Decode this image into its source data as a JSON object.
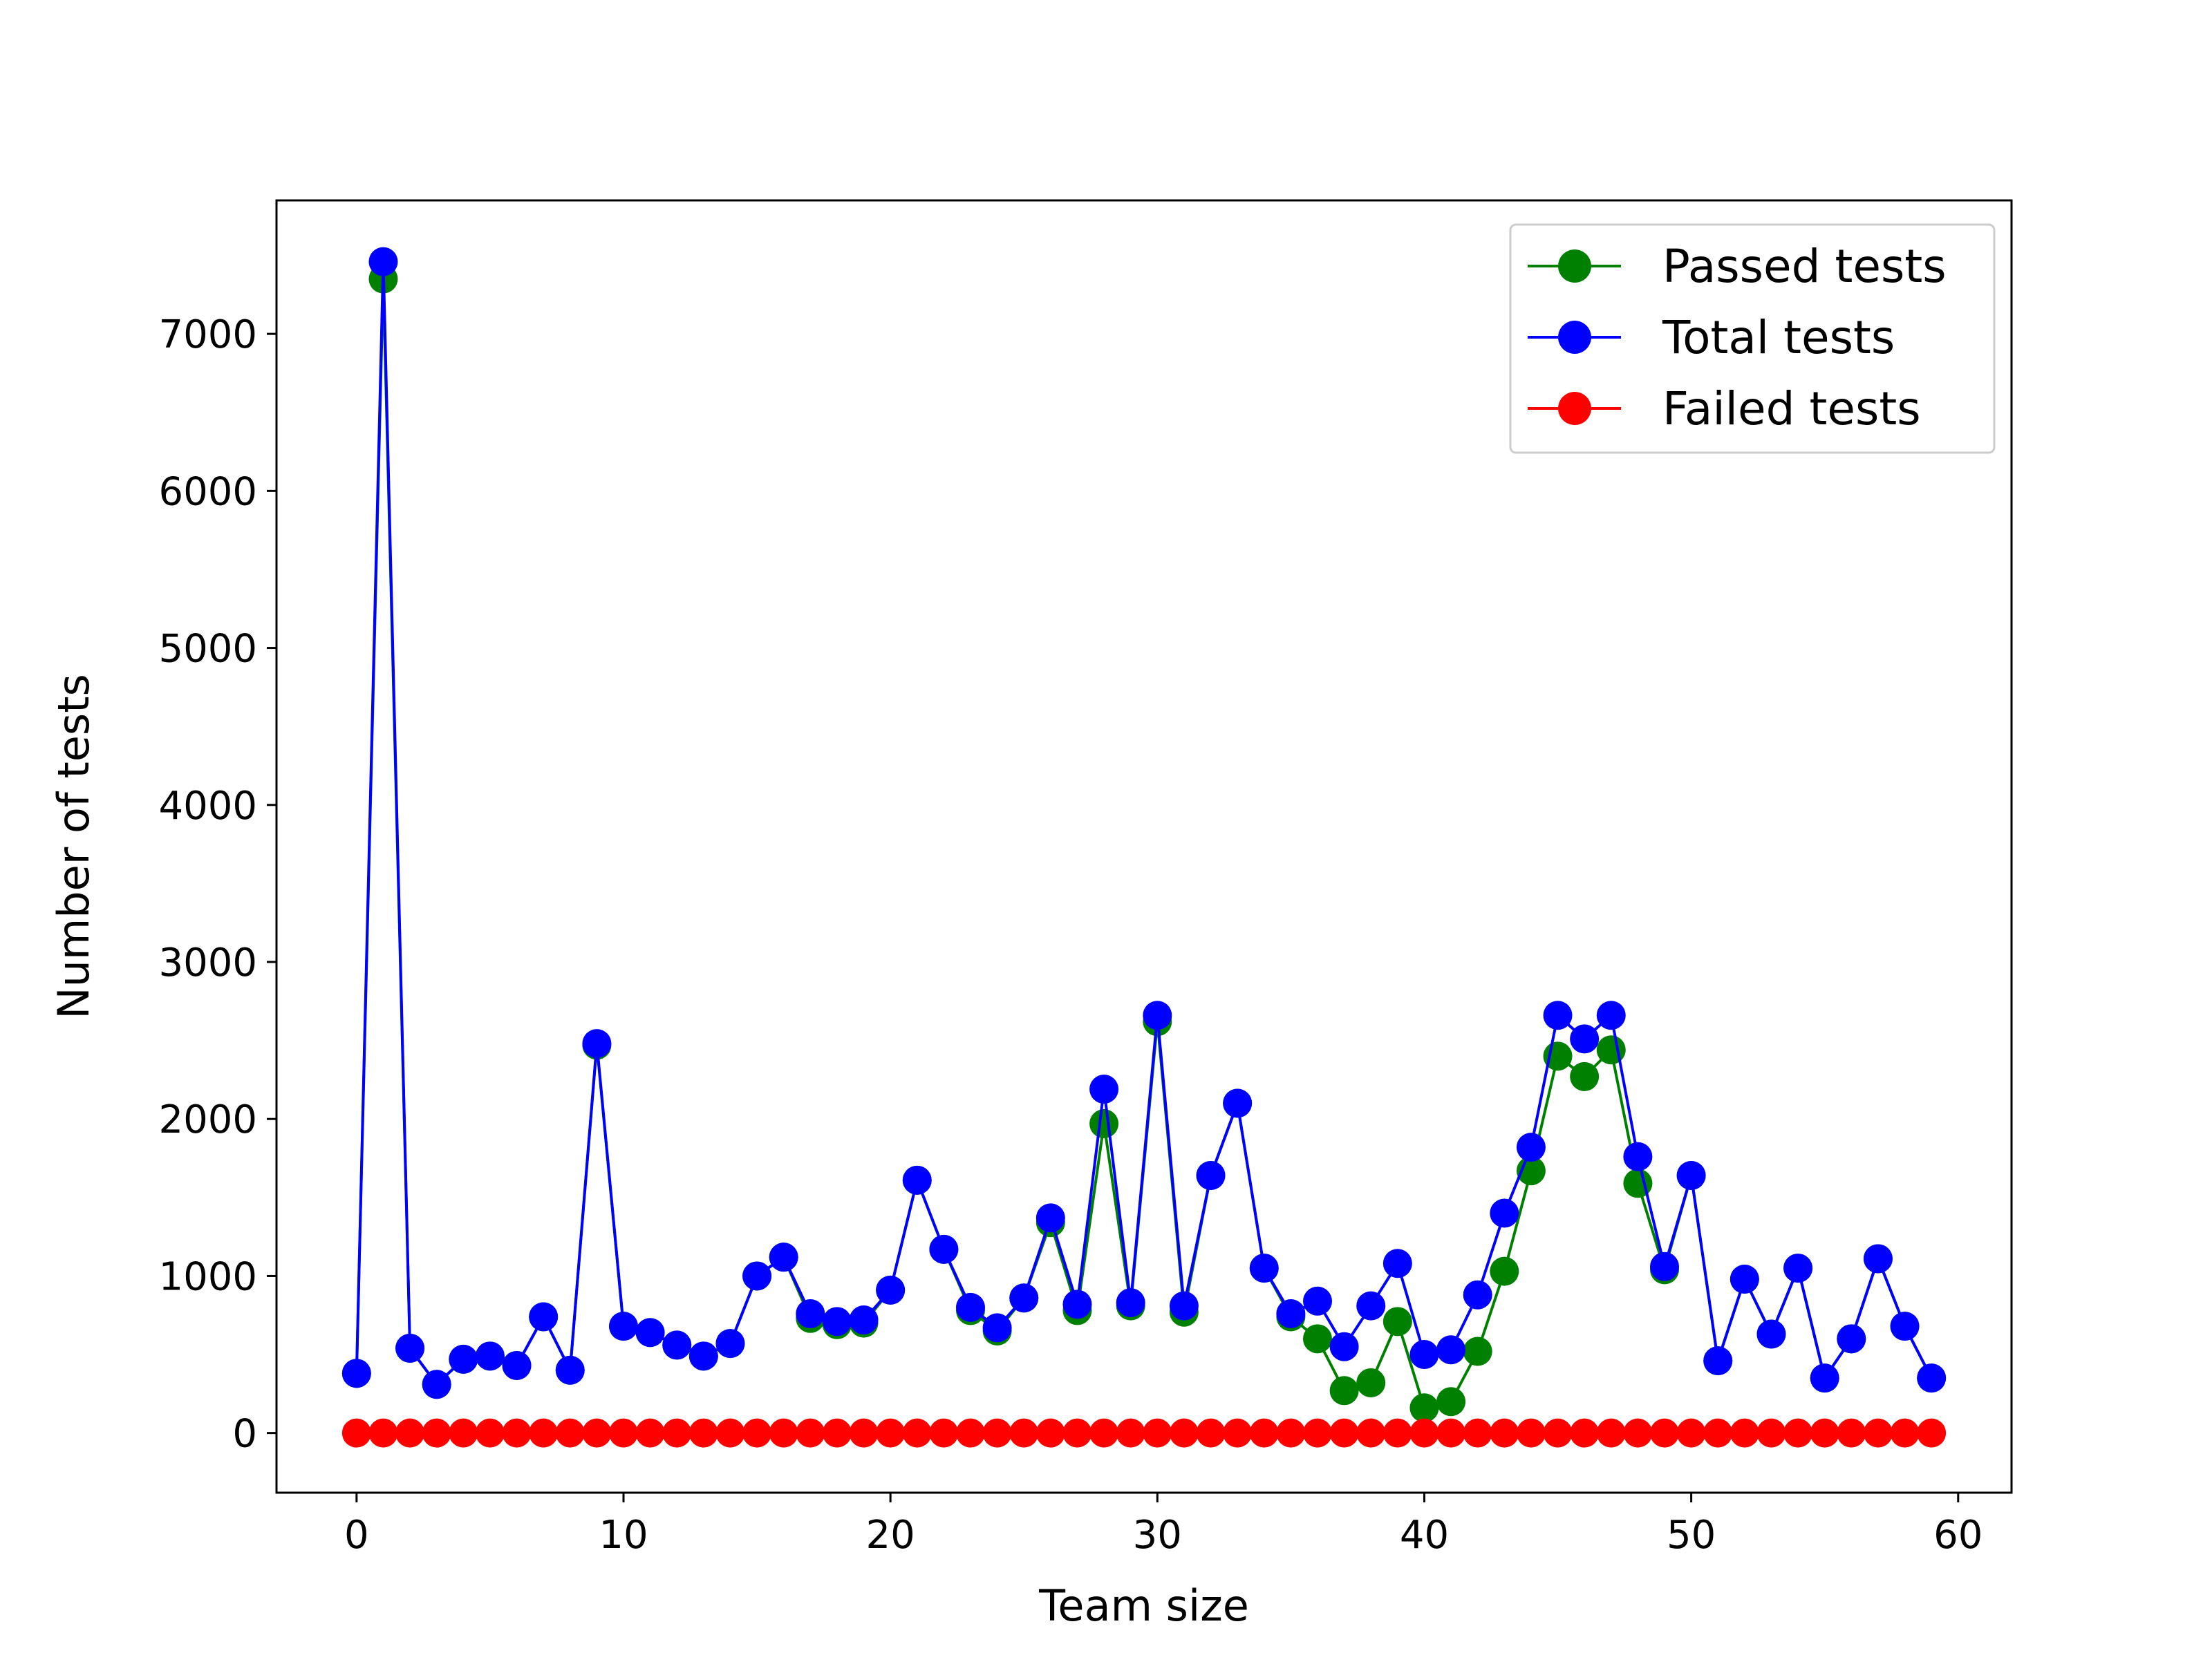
{
  "chart_data": {
    "type": "line",
    "title": "",
    "xlabel": "Team size",
    "ylabel": "Number of tests",
    "xlim": [
      -3,
      62
    ],
    "ylim": [
      -380,
      7850
    ],
    "xticks": [
      0,
      10,
      20,
      30,
      40,
      50,
      60
    ],
    "yticks": [
      0,
      1000,
      2000,
      3000,
      4000,
      5000,
      6000,
      7000
    ],
    "grid": false,
    "legend_position": "top-right",
    "x": [
      0,
      1,
      2,
      3,
      4,
      5,
      6,
      7,
      8,
      9,
      10,
      11,
      12,
      13,
      14,
      15,
      16,
      17,
      18,
      19,
      20,
      21,
      22,
      23,
      24,
      25,
      26,
      27,
      28,
      29,
      30,
      31,
      32,
      33,
      34,
      35,
      36,
      37,
      38,
      39,
      40,
      41,
      42,
      43,
      44,
      45,
      46,
      47,
      48,
      49,
      50,
      51,
      52,
      53,
      54,
      55,
      56,
      57,
      58,
      59
    ],
    "series": [
      {
        "name": "Passed tests",
        "color": "#008000",
        "values": [
          380,
          7350,
          540,
          310,
          470,
          490,
          430,
          740,
          400,
          2470,
          680,
          640,
          560,
          490,
          570,
          1000,
          1120,
          730,
          690,
          700,
          910,
          1610,
          1170,
          780,
          650,
          860,
          1340,
          780,
          1970,
          810,
          2620,
          770,
          1640,
          2100,
          1050,
          740,
          600,
          270,
          320,
          710,
          160,
          200,
          520,
          1030,
          1670,
          2400,
          2270,
          2440,
          1590,
          1040,
          1640,
          460,
          980,
          630,
          1050,
          350,
          600,
          1110,
          680,
          350
        ]
      },
      {
        "name": "Total tests",
        "color": "#0000ff",
        "values": [
          380,
          7460,
          540,
          310,
          470,
          490,
          430,
          740,
          400,
          2480,
          680,
          640,
          560,
          490,
          570,
          1000,
          1120,
          760,
          710,
          720,
          910,
          1610,
          1170,
          800,
          670,
          860,
          1370,
          820,
          2190,
          830,
          2660,
          810,
          1640,
          2100,
          1050,
          760,
          840,
          550,
          810,
          1080,
          500,
          530,
          880,
          1400,
          1820,
          2660,
          2510,
          2660,
          1760,
          1060,
          1640,
          460,
          980,
          630,
          1050,
          350,
          600,
          1110,
          680,
          350
        ]
      },
      {
        "name": "Failed tests",
        "color": "#ff0000",
        "values": [
          0,
          0,
          0,
          0,
          0,
          0,
          0,
          0,
          0,
          0,
          0,
          0,
          0,
          0,
          0,
          0,
          0,
          0,
          0,
          0,
          0,
          0,
          0,
          0,
          0,
          0,
          0,
          0,
          0,
          0,
          0,
          0,
          0,
          0,
          0,
          0,
          0,
          0,
          0,
          0,
          0,
          0,
          0,
          0,
          0,
          0,
          0,
          0,
          0,
          0,
          0,
          0,
          0,
          0,
          0,
          0,
          0,
          0,
          0,
          0
        ]
      }
    ]
  }
}
